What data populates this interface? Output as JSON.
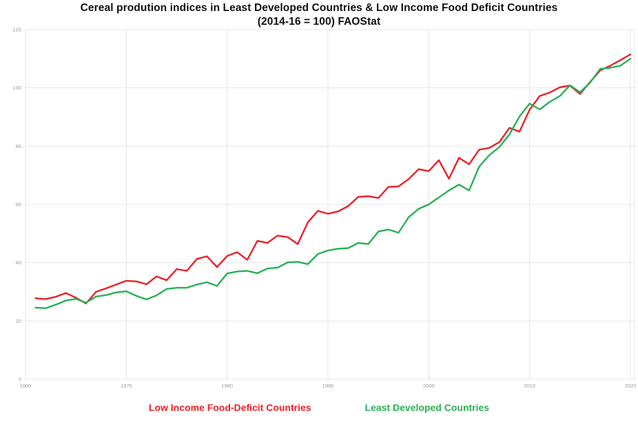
{
  "title": {
    "line1": "Cereal prodution indices in Least Developed Countries & Low Income Food Deficit Countries",
    "line2": "(2014-16 = 100) FAOStat"
  },
  "legend": {
    "items": [
      {
        "label": "Low Income Food-Deficit Countries",
        "color": "#ec1f27"
      },
      {
        "label": "Least Developed Countries",
        "color": "#27b055"
      }
    ]
  },
  "colors": {
    "grid": "#e4e4e4",
    "tick_label": "#9b9b9b",
    "background": "#ffffff",
    "red_series": "#ec1f27",
    "green_series": "#27b055"
  },
  "chart_data": {
    "type": "line",
    "title": "Cereal prodution indices in Least Developed Countries & Low Income Food Deficit Countries",
    "subtitle": "(2014-16 = 100) FAOStat",
    "xlabel": "",
    "ylabel": "",
    "xlim": [
      1960,
      2020.45
    ],
    "ylim": [
      0,
      120
    ],
    "xticks": [
      1960,
      1970,
      1980,
      1990,
      2000,
      2010,
      2020
    ],
    "yticks": [
      0,
      20,
      40,
      60,
      80,
      100,
      120
    ],
    "grid": true,
    "legend_position": "bottom",
    "x": [
      1961,
      1962,
      1963,
      1964,
      1965,
      1966,
      1967,
      1968,
      1969,
      1970,
      1971,
      1972,
      1973,
      1974,
      1975,
      1976,
      1977,
      1978,
      1979,
      1980,
      1981,
      1982,
      1983,
      1984,
      1985,
      1986,
      1987,
      1988,
      1989,
      1990,
      1991,
      1992,
      1993,
      1994,
      1995,
      1996,
      1997,
      1998,
      1999,
      2000,
      2001,
      2002,
      2003,
      2004,
      2005,
      2006,
      2007,
      2008,
      2009,
      2010,
      2011,
      2012,
      2013,
      2014,
      2015,
      2016,
      2017,
      2018,
      2019,
      2020
    ],
    "series": [
      {
        "name": "Low Income Food-Deficit Countries",
        "color": "#ec1f27",
        "values": [
          27.8,
          27.5,
          28.3,
          29.6,
          28.0,
          26.0,
          30.0,
          31.2,
          32.5,
          33.8,
          33.6,
          32.6,
          35.3,
          34.0,
          37.8,
          37.2,
          41.3,
          42.2,
          38.5,
          42.3,
          43.6,
          41.0,
          47.5,
          46.8,
          49.3,
          48.8,
          46.4,
          53.8,
          57.8,
          56.8,
          57.6,
          59.4,
          62.6,
          62.8,
          62.2,
          66.0,
          66.2,
          68.7,
          72.1,
          71.4,
          75.2,
          68.8,
          76.0,
          73.8,
          78.8,
          79.4,
          81.4,
          86.3,
          85.0,
          92.5,
          97.2,
          98.4,
          100.2,
          100.8,
          97.9,
          102.0,
          106.0,
          107.6,
          109.5,
          111.5
        ]
      },
      {
        "name": "Least Developed Countries",
        "color": "#27b055",
        "values": [
          24.6,
          24.4,
          25.6,
          27.0,
          27.6,
          26.3,
          28.4,
          28.9,
          29.8,
          30.2,
          28.6,
          27.4,
          28.8,
          31.0,
          31.4,
          31.4,
          32.5,
          33.3,
          32.0,
          36.3,
          37.0,
          37.2,
          36.4,
          38.0,
          38.3,
          40.1,
          40.3,
          39.5,
          43.0,
          44.2,
          44.8,
          45.0,
          46.8,
          46.4,
          50.7,
          51.4,
          50.3,
          55.6,
          58.5,
          60.0,
          62.4,
          64.8,
          66.8,
          64.8,
          73.0,
          76.9,
          79.7,
          84.0,
          90.2,
          94.6,
          92.6,
          95.2,
          97.2,
          100.9,
          98.5,
          101.8,
          106.5,
          106.9,
          107.6,
          110.0
        ]
      }
    ]
  }
}
